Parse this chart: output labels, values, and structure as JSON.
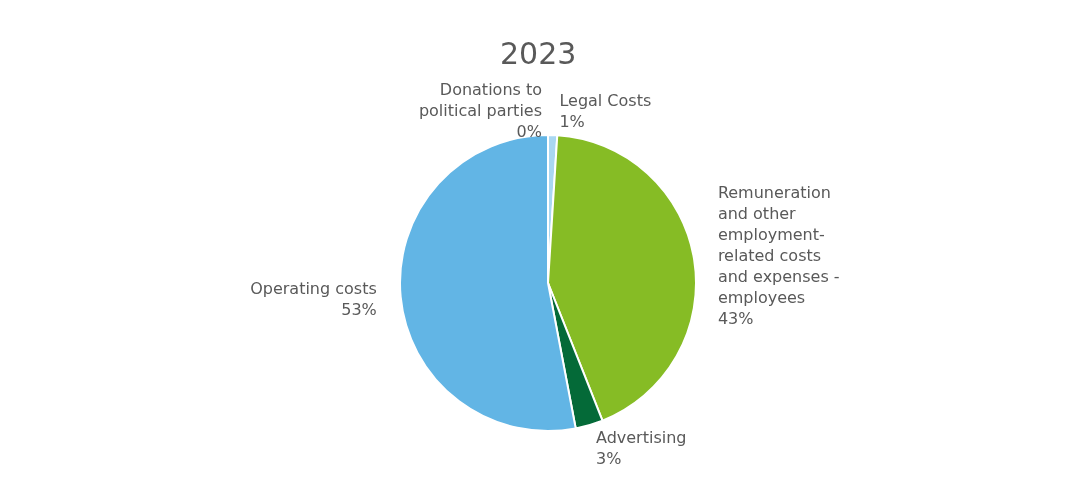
{
  "chart_data": {
    "type": "pie",
    "title": "2023",
    "categories": [
      "Legal Costs",
      "Remuneration and other employment-related costs and expenses - employees",
      "Advertising",
      "Operating costs",
      "Donations to political parties"
    ],
    "values": [
      1,
      43,
      3,
      53,
      0
    ],
    "value_labels": [
      "1%",
      "43%",
      "3%",
      "53%",
      "0%"
    ],
    "colors": [
      "#a9d7f2",
      "#86bc25",
      "#046a38",
      "#62b5e5",
      "#1f6fa8"
    ]
  }
}
